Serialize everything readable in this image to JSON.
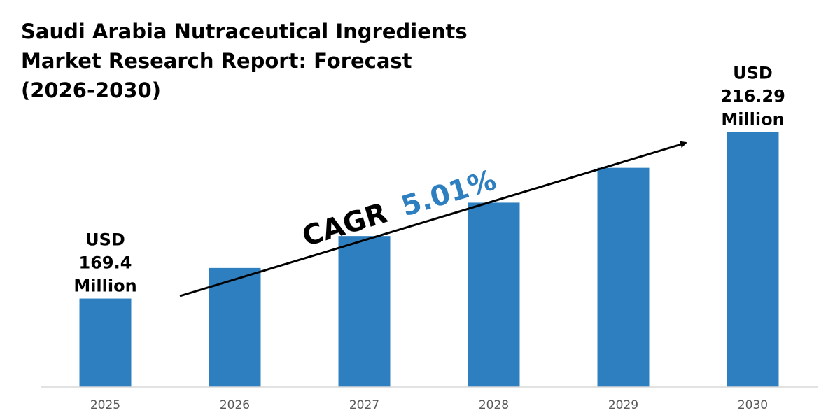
{
  "title_lines": [
    "Saudi Arabia Nutraceutical Ingredients",
    "Market Research Report: Forecast",
    "(2026-2030)"
  ],
  "cagr": {
    "label": "CAGR",
    "value": "5.01%",
    "label_color": "#000000",
    "value_color": "#2E7FC0"
  },
  "colors": {
    "bar": "#2E7FC0",
    "axis": "#D9D9D9",
    "tick_text": "#595959",
    "arrow": "#000000"
  },
  "chart_data": {
    "type": "bar",
    "title": "Saudi Arabia Nutraceutical Ingredients Market Research Report: Forecast (2026-2030)",
    "categories": [
      "2025",
      "2026",
      "2027",
      "2028",
      "2029",
      "2030"
    ],
    "values": [
      169.4,
      178.0,
      187.0,
      196.4,
      206.2,
      216.29
    ],
    "ylim": [
      144.5,
      233.5
    ],
    "xlabel": "",
    "ylabel": "",
    "grid": false,
    "annotations": [
      {
        "category": "2025",
        "lines": [
          "USD",
          "169.4",
          "Million"
        ]
      },
      {
        "category": "2030",
        "lines": [
          "USD",
          "216.29",
          "Million"
        ]
      }
    ]
  }
}
